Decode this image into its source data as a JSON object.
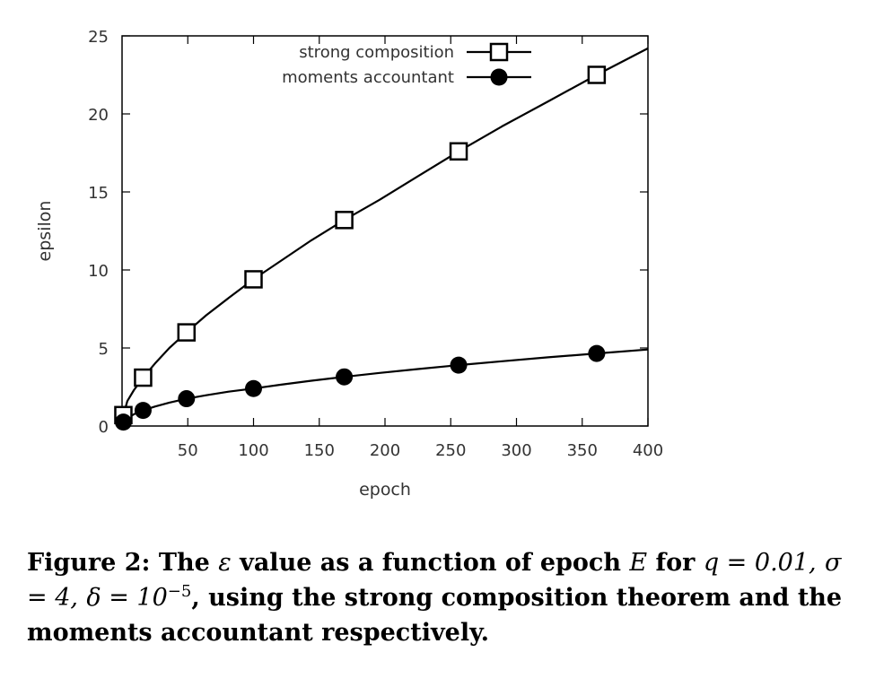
{
  "chart_data": {
    "type": "line",
    "xlabel": "epoch",
    "ylabel": "epsilon",
    "xlim": [
      0,
      400
    ],
    "ylim": [
      0,
      25
    ],
    "x_ticks": [
      50,
      100,
      150,
      200,
      250,
      300,
      350,
      400
    ],
    "y_ticks": [
      0,
      5,
      10,
      15,
      20,
      25
    ],
    "grid": false,
    "legend_position": "top-right",
    "series": [
      {
        "name": "strong composition",
        "marker": "open-square",
        "color": "#000000",
        "markers": [
          {
            "x": 1,
            "y": 0.7
          },
          {
            "x": 16,
            "y": 3.1
          },
          {
            "x": 49,
            "y": 6.0
          },
          {
            "x": 100,
            "y": 9.4
          },
          {
            "x": 169,
            "y": 13.2
          },
          {
            "x": 256,
            "y": 17.6
          },
          {
            "x": 361,
            "y": 22.5
          }
        ],
        "curve": [
          {
            "x": 0.2,
            "y": 0.1
          },
          {
            "x": 1,
            "y": 0.7
          },
          {
            "x": 4,
            "y": 1.6
          },
          {
            "x": 9,
            "y": 2.3
          },
          {
            "x": 16,
            "y": 3.1
          },
          {
            "x": 25,
            "y": 4.0
          },
          {
            "x": 36,
            "y": 5.0
          },
          {
            "x": 49,
            "y": 6.0
          },
          {
            "x": 64,
            "y": 7.1
          },
          {
            "x": 81,
            "y": 8.2
          },
          {
            "x": 100,
            "y": 9.4
          },
          {
            "x": 121,
            "y": 10.6
          },
          {
            "x": 144,
            "y": 11.9
          },
          {
            "x": 169,
            "y": 13.2
          },
          {
            "x": 196,
            "y": 14.5
          },
          {
            "x": 225,
            "y": 16.0
          },
          {
            "x": 256,
            "y": 17.6
          },
          {
            "x": 289,
            "y": 19.2
          },
          {
            "x": 324,
            "y": 20.8
          },
          {
            "x": 361,
            "y": 22.5
          },
          {
            "x": 400,
            "y": 24.2
          }
        ]
      },
      {
        "name": "moments accountant",
        "marker": "filled-circle",
        "color": "#000000",
        "markers": [
          {
            "x": 1,
            "y": 0.25
          },
          {
            "x": 16,
            "y": 1.0
          },
          {
            "x": 49,
            "y": 1.75
          },
          {
            "x": 100,
            "y": 2.4
          },
          {
            "x": 169,
            "y": 3.15
          },
          {
            "x": 256,
            "y": 3.9
          },
          {
            "x": 361,
            "y": 4.65
          }
        ],
        "curve": [
          {
            "x": 0.2,
            "y": 0.1
          },
          {
            "x": 1,
            "y": 0.25
          },
          {
            "x": 4,
            "y": 0.5
          },
          {
            "x": 9,
            "y": 0.75
          },
          {
            "x": 16,
            "y": 1.0
          },
          {
            "x": 25,
            "y": 1.25
          },
          {
            "x": 36,
            "y": 1.5
          },
          {
            "x": 49,
            "y": 1.75
          },
          {
            "x": 64,
            "y": 1.97
          },
          {
            "x": 81,
            "y": 2.2
          },
          {
            "x": 100,
            "y": 2.4
          },
          {
            "x": 121,
            "y": 2.65
          },
          {
            "x": 144,
            "y": 2.9
          },
          {
            "x": 169,
            "y": 3.15
          },
          {
            "x": 196,
            "y": 3.4
          },
          {
            "x": 225,
            "y": 3.65
          },
          {
            "x": 256,
            "y": 3.9
          },
          {
            "x": 289,
            "y": 4.15
          },
          {
            "x": 324,
            "y": 4.4
          },
          {
            "x": 361,
            "y": 4.65
          },
          {
            "x": 400,
            "y": 4.9
          }
        ]
      }
    ]
  },
  "caption": {
    "label": "Figure 2:",
    "text_1": "The",
    "epsilon_symbol": "ε",
    "text_2": "value as a function of epoch",
    "epoch_symbol": "E",
    "text_3": "for",
    "q_expr": "q = 0.01,",
    "sigma_expr": "σ = 4,",
    "delta_expr": "δ = 10",
    "delta_exponent": "−5",
    "text_4": ", using the strong composition theorem and the moments accountant respectively."
  }
}
